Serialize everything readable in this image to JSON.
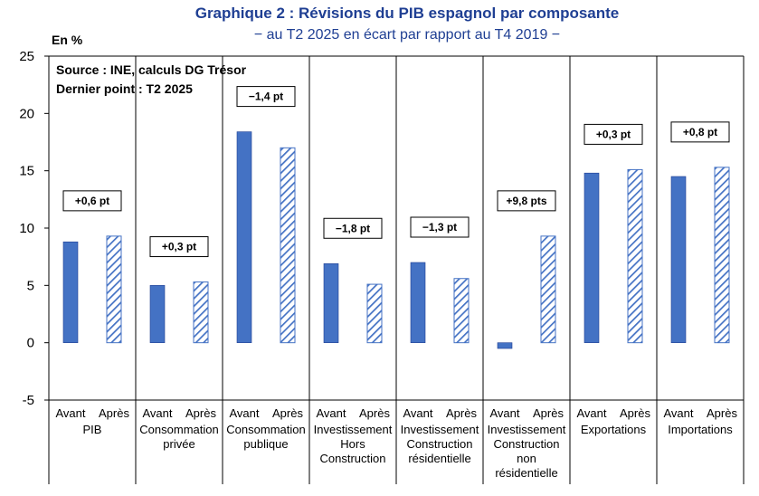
{
  "chart_data": {
    "type": "bar",
    "title": "Graphique 2 : Révisions du PIB espagnol par composante",
    "subtitle": "− au T2 2025 en écart par rapport au T4 2019 −",
    "ylabel": "En %",
    "source_lines": [
      "Source : INE, calculs DG  Trésor",
      "Dernier point : T2 2025"
    ],
    "ylim": [
      -5,
      25
    ],
    "yticks": [
      25,
      20,
      15,
      10,
      5,
      0,
      -5
    ],
    "series": [
      {
        "name": "Avant",
        "fill": "solid"
      },
      {
        "name": "Après",
        "fill": "hatched"
      }
    ],
    "groups": [
      {
        "label_lines": [
          "PIB"
        ],
        "avant": 8.8,
        "apres": 9.3,
        "annotation": "+0,6 pt"
      },
      {
        "label_lines": [
          "Consommation",
          "privée"
        ],
        "avant": 5.0,
        "apres": 5.3,
        "annotation": "+0,3 pt"
      },
      {
        "label_lines": [
          "Consommation",
          "publique"
        ],
        "avant": 18.4,
        "apres": 17.0,
        "annotation": "−1,4 pt"
      },
      {
        "label_lines": [
          "Investissement",
          "Hors",
          "Construction"
        ],
        "avant": 6.9,
        "apres": 5.1,
        "annotation": "−1,8 pt"
      },
      {
        "label_lines": [
          "Investissement",
          "Construction",
          "résidentielle"
        ],
        "avant": 7.0,
        "apres": 5.6,
        "annotation": "−1,3 pt"
      },
      {
        "label_lines": [
          "Investissement",
          "Construction",
          "non",
          "résidentielle"
        ],
        "avant": -0.5,
        "apres": 9.3,
        "annotation": "+9,8 pts"
      },
      {
        "label_lines": [
          "Exportations"
        ],
        "avant": 14.8,
        "apres": 15.1,
        "annotation": "+0,3 pt"
      },
      {
        "label_lines": [
          "Importations"
        ],
        "avant": 14.5,
        "apres": 15.3,
        "annotation": "+0,8 pt"
      }
    ],
    "colors": {
      "bar": "#4472C4",
      "bar_edge": "#1F3F93",
      "grid": "#000000",
      "text": "#000000"
    }
  }
}
